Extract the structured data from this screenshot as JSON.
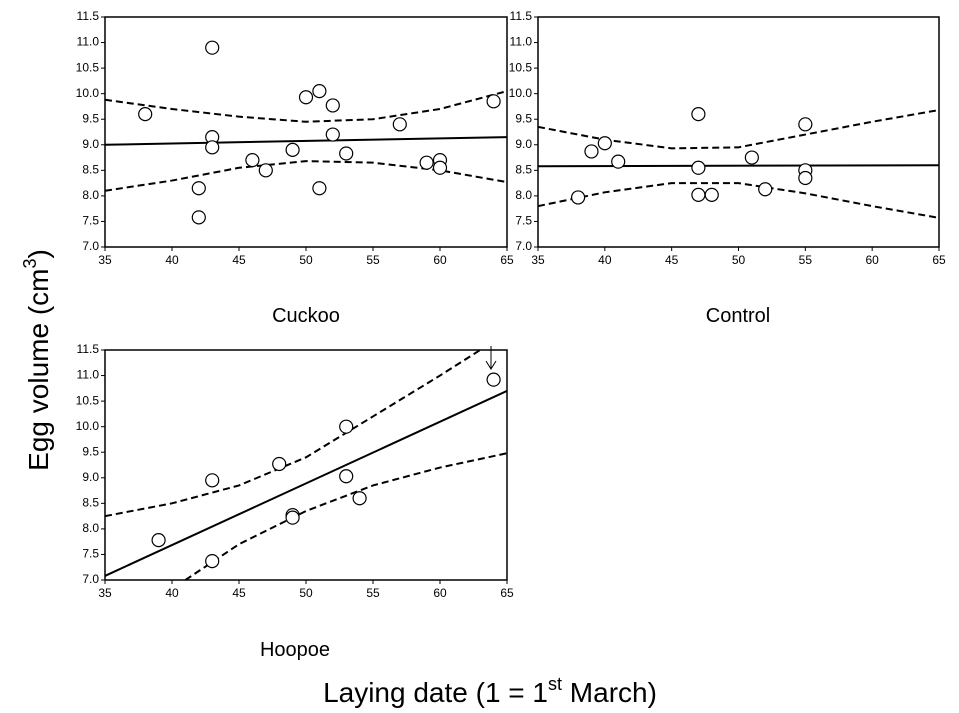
{
  "y_label": [
    "Egg volume (cm",
    "3",
    ")"
  ],
  "x_label": [
    "Laying date (1 = 1",
    "st",
    " March)"
  ],
  "chart_data": [
    {
      "type": "scatter",
      "title": "Cuckoo",
      "x": [
        38,
        43,
        43,
        43,
        42,
        42,
        46,
        47,
        49,
        50,
        51,
        52,
        52,
        53,
        51,
        57,
        59,
        60,
        60,
        64
      ],
      "values": [
        9.6,
        10.9,
        9.15,
        8.95,
        8.15,
        7.58,
        8.7,
        8.5,
        8.9,
        9.93,
        10.05,
        9.77,
        9.2,
        8.83,
        8.15,
        9.4,
        8.65,
        8.7,
        8.55,
        9.85
      ],
      "lines": [
        {
          "style": "solid",
          "x": [
            35,
            65
          ],
          "values": [
            9.0,
            9.15
          ]
        },
        {
          "style": "dashed",
          "x": [
            35,
            40,
            45,
            50,
            55,
            60,
            65
          ],
          "values": [
            9.88,
            9.7,
            9.55,
            9.45,
            9.5,
            9.7,
            10.05
          ]
        },
        {
          "style": "dashed",
          "x": [
            35,
            40,
            45,
            50,
            55,
            60,
            65
          ],
          "values": [
            8.1,
            8.3,
            8.55,
            8.68,
            8.65,
            8.5,
            8.27
          ]
        }
      ],
      "xlim": [
        35,
        65
      ],
      "xticks": [
        35,
        40,
        45,
        50,
        55,
        60,
        65
      ],
      "ylim": [
        7,
        11.5
      ],
      "yticks": [
        {
          "value": 7,
          "label": "7.0"
        },
        7.5,
        {
          "value": 8,
          "label": "8.0"
        },
        8.5,
        {
          "value": 9,
          "label": "9.0"
        },
        9.5,
        {
          "value": 10,
          "label": "10.0"
        },
        10.5,
        {
          "value": 11,
          "label": "11.0"
        },
        11.5
      ]
    },
    {
      "type": "scatter",
      "title": "Control",
      "x": [
        38,
        39,
        40,
        41,
        47,
        47,
        47,
        48,
        51,
        52,
        55,
        55,
        55
      ],
      "values": [
        7.97,
        8.87,
        9.03,
        8.67,
        9.6,
        8.55,
        8.02,
        8.02,
        8.75,
        8.13,
        9.4,
        8.5,
        8.35
      ],
      "lines": [
        {
          "style": "solid",
          "x": [
            35,
            65
          ],
          "values": [
            8.58,
            8.6
          ]
        },
        {
          "style": "dashed",
          "x": [
            35,
            40,
            45,
            50,
            55,
            60,
            65
          ],
          "values": [
            9.35,
            9.1,
            8.93,
            8.95,
            9.2,
            9.45,
            9.68
          ]
        },
        {
          "style": "dashed",
          "x": [
            35,
            40,
            45,
            50,
            55,
            60,
            65
          ],
          "values": [
            7.8,
            8.07,
            8.25,
            8.25,
            8.05,
            7.8,
            7.57
          ]
        }
      ],
      "xlim": [
        35,
        65
      ],
      "xticks": [
        35,
        40,
        45,
        50,
        55,
        60,
        65
      ],
      "ylim": [
        7,
        11.5
      ],
      "yticks": [
        {
          "value": 7,
          "label": "7.0"
        },
        7.5,
        {
          "value": 8,
          "label": "8.0"
        },
        8.5,
        {
          "value": 9,
          "label": "9.0"
        },
        9.5,
        {
          "value": 10,
          "label": "10.0"
        },
        10.5,
        {
          "value": 11,
          "label": "11.0"
        },
        11.5
      ]
    },
    {
      "type": "scatter",
      "title": "Hoopoe",
      "x": [
        39,
        43,
        43,
        48,
        49,
        49,
        53,
        53,
        54,
        64
      ],
      "values": [
        7.78,
        8.95,
        7.37,
        9.27,
        8.27,
        8.22,
        10.0,
        9.03,
        8.6,
        10.92
      ],
      "lines": [
        {
          "style": "solid",
          "x": [
            35,
            65
          ],
          "values": [
            7.08,
            10.7
          ]
        },
        {
          "style": "dashed",
          "x": [
            35,
            40,
            45,
            50,
            55,
            60,
            63
          ],
          "values": [
            8.25,
            8.5,
            8.85,
            9.4,
            10.2,
            11.0,
            11.5
          ]
        },
        {
          "style": "dashed",
          "x": [
            41,
            45,
            50,
            55,
            60,
            65
          ],
          "values": [
            7.0,
            7.7,
            8.35,
            8.85,
            9.2,
            9.48
          ]
        }
      ],
      "xlim": [
        35,
        65
      ],
      "xticks": [
        35,
        40,
        45,
        50,
        55,
        60,
        65
      ],
      "ylim": [
        7,
        11.5
      ],
      "yticks": [
        {
          "value": 7,
          "label": "7.0"
        },
        7.5,
        {
          "value": 8,
          "label": "8.0"
        },
        8.5,
        {
          "value": 9,
          "label": "9.0"
        },
        9.5,
        {
          "value": 10,
          "label": "10.0"
        },
        10.5,
        {
          "value": 11,
          "label": "11.0"
        },
        11.5
      ]
    }
  ]
}
